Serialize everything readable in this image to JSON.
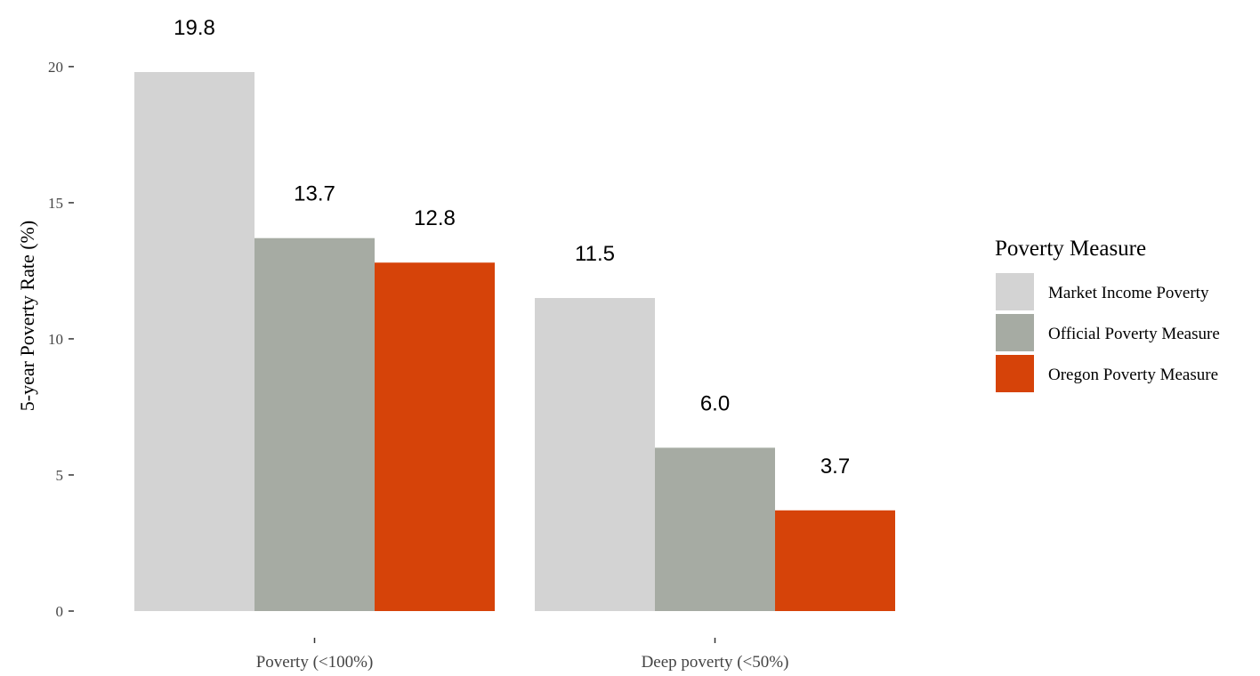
{
  "chart_data": {
    "type": "bar",
    "categories": [
      "Poverty (<100%)",
      "Deep poverty (<50%)"
    ],
    "series": [
      {
        "name": "Market Income Poverty",
        "values": [
          19.8,
          11.5
        ],
        "labels": [
          "19.8",
          "11.5"
        ],
        "color": "#d3d3d3"
      },
      {
        "name": "Official Poverty Measure",
        "values": [
          13.7,
          6.0
        ],
        "labels": [
          "13.7",
          "6.0"
        ],
        "color": "#a6aba3"
      },
      {
        "name": "Oregon Poverty Measure",
        "values": [
          12.8,
          3.7
        ],
        "labels": [
          "12.8",
          "3.7"
        ],
        "color": "#d64309"
      }
    ],
    "ylabel": "5-year Poverty Rate (%)",
    "yticks": [
      0,
      5,
      10,
      15,
      20
    ],
    "ylim": [
      0,
      20.4
    ],
    "legend_title": "Poverty Measure",
    "legend_position": "right",
    "grid": false
  }
}
